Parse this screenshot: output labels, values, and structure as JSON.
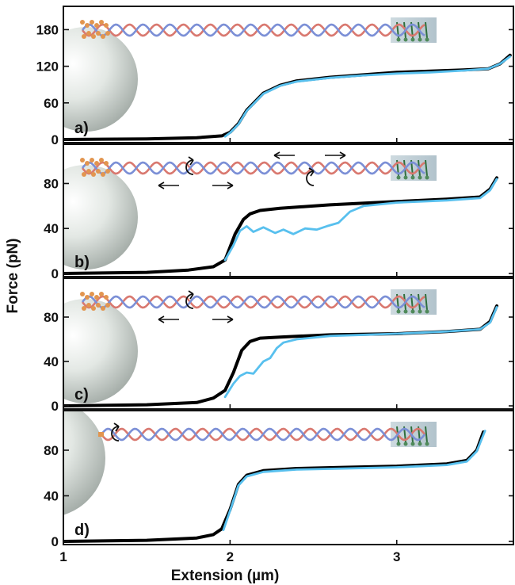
{
  "chart_data": {
    "type": "line",
    "xlabel": "Extension (µm)",
    "ylabel": "Force (pN)",
    "xlim": [
      1.0,
      3.7
    ],
    "x_ticks": [
      "1",
      "2",
      "3"
    ],
    "x_tick_values": [
      1,
      2,
      3
    ],
    "colors": {
      "stretch": "#000000",
      "retract": "#58c0ee",
      "strand_red": "#d9786f",
      "strand_blue": "#7b8fd6",
      "bead": "#d6dcd8"
    },
    "panels": [
      {
        "label": "a)",
        "ylim": [
          0,
          200
        ],
        "y_ticks": [
          "0",
          "60",
          "120",
          "180"
        ],
        "y_tick_values": [
          0,
          60,
          120,
          180
        ],
        "series": [
          {
            "role": "stretch",
            "x": [
              1.0,
              1.5,
              1.8,
              1.95,
              2.0,
              2.05,
              2.1,
              2.2,
              2.3,
              2.4,
              2.6,
              2.8,
              3.0,
              3.2,
              3.4,
              3.55,
              3.62,
              3.68
            ],
            "y": [
              0,
              1,
              3,
              6,
              12,
              26,
              48,
              76,
              89,
              96,
              102,
              106,
              110,
              112,
              114,
              116,
              124,
              138
            ]
          },
          {
            "role": "retract",
            "x": [
              1.97,
              2.0,
              2.05,
              2.1,
              2.2,
              2.3,
              2.4,
              2.6,
              2.8,
              3.0,
              3.2,
              3.4,
              3.55,
              3.62,
              3.68
            ],
            "y": [
              5,
              11,
              25,
              47,
              75,
              88,
              95,
              101,
              105,
              108,
              110,
              113,
              116,
              124,
              136
            ]
          }
        ]
      },
      {
        "label": "b)",
        "ylim": [
          0,
          105
        ],
        "y_ticks": [
          "0",
          "40",
          "80"
        ],
        "y_tick_values": [
          0,
          40,
          80
        ],
        "series": [
          {
            "role": "stretch",
            "x": [
              1.0,
              1.5,
              1.75,
              1.9,
              1.97,
              2.03,
              2.08,
              2.12,
              2.18,
              2.3,
              2.6,
              3.0,
              3.3,
              3.5,
              3.56,
              3.6
            ],
            "y": [
              0,
              1,
              3,
              6,
              12,
              35,
              48,
              53,
              56,
              58,
              61,
              64,
              66,
              68,
              75,
              85
            ]
          },
          {
            "role": "retract",
            "x": [
              1.97,
              2.02,
              2.06,
              2.1,
              2.14,
              2.2,
              2.27,
              2.32,
              2.38,
              2.45,
              2.52,
              2.58,
              2.65,
              2.72,
              2.8,
              3.0,
              3.3,
              3.5,
              3.56,
              3.6
            ],
            "y": [
              12,
              25,
              38,
              42,
              37,
              41,
              36,
              39,
              35,
              40,
              39,
              42,
              45,
              55,
              60,
              63,
              65,
              67,
              74,
              84
            ]
          }
        ]
      },
      {
        "label": "c)",
        "ylim": [
          0,
          105
        ],
        "y_ticks": [
          "0",
          "40",
          "80"
        ],
        "y_tick_values": [
          0,
          40,
          80
        ],
        "series": [
          {
            "role": "stretch",
            "x": [
              1.0,
              1.5,
              1.8,
              1.9,
              1.97,
              2.02,
              2.07,
              2.12,
              2.18,
              2.3,
              2.6,
              3.0,
              3.3,
              3.5,
              3.56,
              3.6
            ],
            "y": [
              0,
              1,
              3,
              7,
              14,
              30,
              50,
              58,
              61,
              62,
              64,
              65,
              67,
              69,
              76,
              90
            ]
          },
          {
            "role": "retract",
            "x": [
              1.97,
              2.02,
              2.06,
              2.1,
              2.14,
              2.2,
              2.24,
              2.28,
              2.32,
              2.4,
              2.6,
              3.0,
              3.3,
              3.5,
              3.56,
              3.6
            ],
            "y": [
              8,
              20,
              27,
              30,
              29,
              40,
              43,
              52,
              57,
              60,
              63,
              65,
              67,
              69,
              75,
              89
            ]
          }
        ]
      },
      {
        "label": "d)",
        "ylim": [
          0,
          105
        ],
        "y_ticks": [
          "0",
          "40",
          "80"
        ],
        "y_tick_values": [
          0,
          40,
          80
        ],
        "series": [
          {
            "role": "stretch",
            "x": [
              1.0,
              1.5,
              1.8,
              1.9,
              1.95,
              2.0,
              2.05,
              2.1,
              2.2,
              2.4,
              2.7,
              3.0,
              3.3,
              3.42,
              3.48,
              3.52
            ],
            "y": [
              0,
              1,
              3,
              6,
              11,
              28,
              50,
              58,
              62,
              64,
              65,
              66,
              68,
              71,
              80,
              96
            ]
          },
          {
            "role": "retract",
            "x": [
              1.96,
              2.0,
              2.05,
              2.1,
              2.2,
              2.4,
              2.7,
              3.0,
              3.3,
              3.42,
              3.48,
              3.53
            ],
            "y": [
              10,
              27,
              49,
              57,
              61,
              63,
              64,
              65,
              67,
              70,
              79,
              97
            ]
          }
        ]
      }
    ],
    "annotations": [
      {
        "panel": 1,
        "type": "nick-unpeel",
        "arrows": 2
      },
      {
        "panel": 1,
        "type": "nick-unpeel",
        "arrows": 2
      },
      {
        "panel": 2,
        "type": "nick-unpeel",
        "arrows": 2
      },
      {
        "panel": 3,
        "type": "end-fray",
        "arrows": 0
      }
    ]
  }
}
